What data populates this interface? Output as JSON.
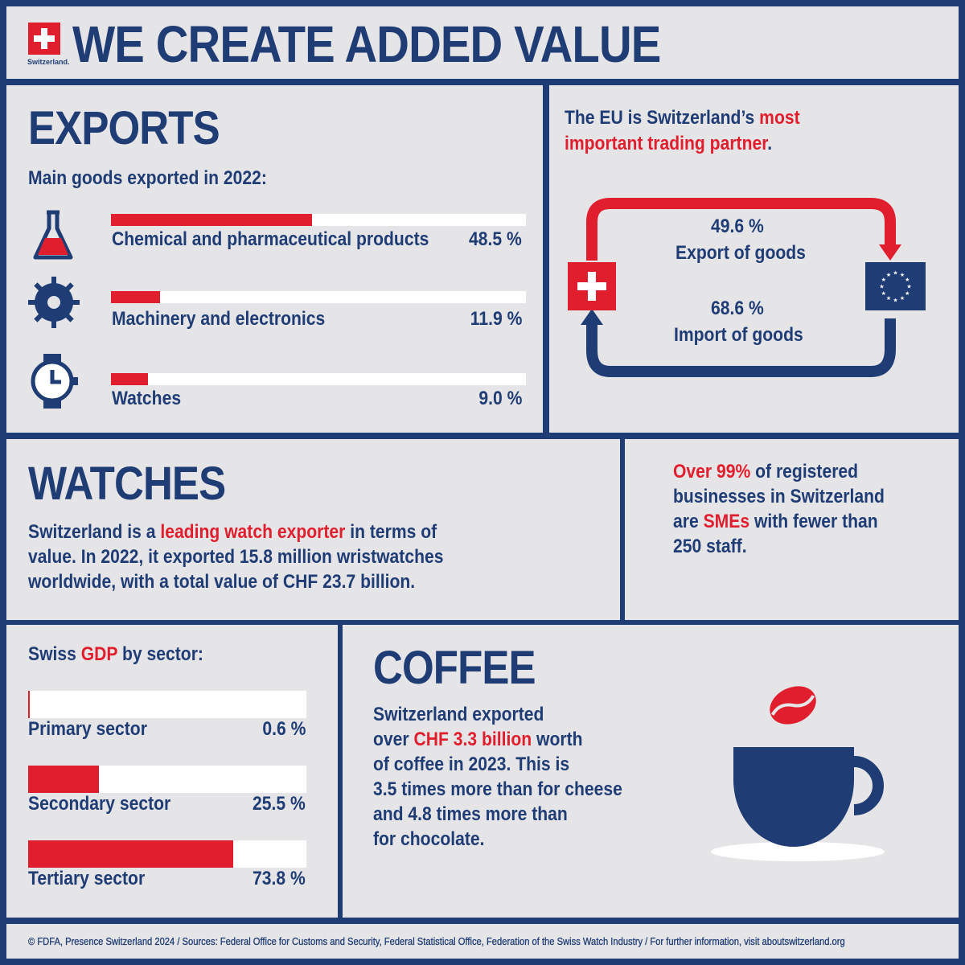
{
  "header": {
    "logo_text": "Switzerland.",
    "title": "WE CREATE ADDED VALUE"
  },
  "exports": {
    "title": "EXPORTS",
    "subtitle": "Main goods exported in 2022:",
    "items": [
      {
        "label": "Chemical and pharmaceutical products",
        "value": 48.5,
        "display": "48.5 %",
        "icon": "flask-icon"
      },
      {
        "label": "Machinery and electronics",
        "value": 11.9,
        "display": "11.9 %",
        "icon": "gear-icon"
      },
      {
        "label": "Watches",
        "value": 9.0,
        "display": "9.0 %",
        "icon": "watch-icon"
      }
    ]
  },
  "eu": {
    "text_a": "The EU is Switzerland’s ",
    "text_b": "most",
    "text_c": "important trading partner",
    "text_d": ".",
    "export_value": "49.6 %",
    "export_label": "Export of goods",
    "import_value": "68.6 %",
    "import_label": "Import of goods"
  },
  "watches": {
    "title": "WATCHES",
    "line1a": "Switzerland is a ",
    "line1b": "leading watch exporter",
    "line1c": " in terms of",
    "line2": "value. In 2022, it exported 15.8 million wristwatches",
    "line3": "worldwide, with a total value of CHF 23.7 billion."
  },
  "sme": {
    "l1a": "Over 99%",
    "l1b": " of registered",
    "l2": "businesses in Switzerland",
    "l3a": "are ",
    "l3b": "SMEs",
    "l3c": " with fewer than",
    "l4": "250 staff."
  },
  "gdp": {
    "title_a": "Swiss ",
    "title_b": "GDP",
    "title_c": " by sector:",
    "items": [
      {
        "label": "Primary sector",
        "value": 0.6,
        "display": "0.6 %"
      },
      {
        "label": "Secondary sector",
        "value": 25.5,
        "display": "25.5 %"
      },
      {
        "label": "Tertiary sector",
        "value": 73.8,
        "display": "73.8 %"
      }
    ]
  },
  "coffee": {
    "title": "COFFEE",
    "l1": "Switzerland exported",
    "l2a": "over ",
    "l2b": "CHF 3.3 billion",
    "l2c": " worth",
    "l3": "of coffee in 2023. This is",
    "l4": "3.5 times more than for cheese",
    "l5": "and 4.8 times more than",
    "l6": "for chocolate."
  },
  "footer": "© FDFA, Presence Switzerland 2024 / Sources: Federal Office for Customs and Security, Federal Statistical Office, Federation of the Swiss Watch Industry / For further information, visit aboutswitzerland.org",
  "colors": {
    "navy": "#1f3c74",
    "red": "#e01e2d",
    "background": "#e5e5e7"
  }
}
